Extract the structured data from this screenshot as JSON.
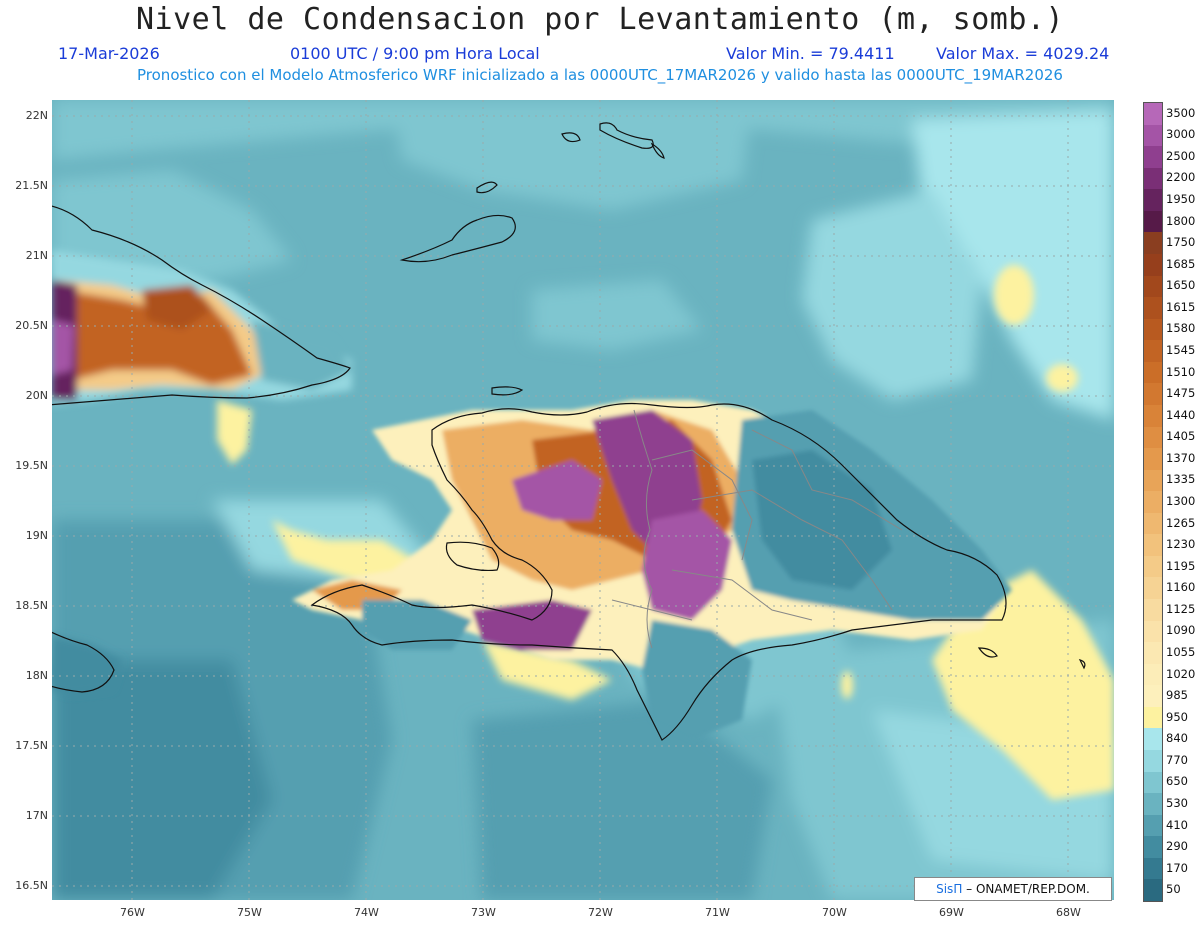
{
  "header": {
    "title": "Nivel de Condensacion por Levantamiento (m, somb.)",
    "date": "17-Mar-2026",
    "time": "0100 UTC / 9:00 pm Hora Local",
    "valmin": "Valor Min. = 79.4411",
    "valmax": "Valor Max. = 4029.24",
    "forecast": "Pronostico con el Modelo Atmosferico WRF inicializado a las 0000UTC_17MAR2026 y valido hasta las  0000UTC_19MAR2026"
  },
  "axes": {
    "lat_labels": [
      "22N",
      "21.5N",
      "21N",
      "20.5N",
      "20N",
      "19.5N",
      "19N",
      "18.5N",
      "18N",
      "17.5N",
      "17N",
      "16.5N"
    ],
    "lon_labels": [
      "76W",
      "75W",
      "74W",
      "73W",
      "72W",
      "71W",
      "70W",
      "69W",
      "68W"
    ]
  },
  "colorbar": {
    "levels": [
      "3500",
      "3000",
      "2500",
      "2200",
      "1950",
      "1800",
      "1750",
      "1685",
      "1650",
      "1615",
      "1580",
      "1545",
      "1510",
      "1475",
      "1440",
      "1405",
      "1370",
      "1335",
      "1300",
      "1265",
      "1230",
      "1195",
      "1160",
      "1125",
      "1090",
      "1055",
      "1020",
      "985",
      "950",
      "840",
      "770",
      "650",
      "530",
      "410",
      "290",
      "170",
      "50"
    ],
    "colors": [
      "#b668b8",
      "#a454a6",
      "#8f3f8f",
      "#7a2f76",
      "#65235e",
      "#561a48",
      "#8a3e20",
      "#963f1c",
      "#a2481c",
      "#ad511e",
      "#b85a20",
      "#c26424",
      "#cb6e28",
      "#d27830",
      "#d98338",
      "#df8e42",
      "#e4994c",
      "#e8a458",
      "#ecae64",
      "#efb870",
      "#f2c27c",
      "#f4cb88",
      "#f6d394",
      "#f8dba0",
      "#fae2aa",
      "#fbe8b2",
      "#fcedb8",
      "#fdf0bc",
      "#fdf2a0",
      "#a8e6ec",
      "#95d8e0",
      "#7fc6d0",
      "#6ab3c0",
      "#559fb0",
      "#428ca0",
      "#347a90",
      "#2a6a80"
    ]
  },
  "credit": {
    "brand": "SisΠ",
    "text": " – ONAMET/REP.DOM."
  }
}
